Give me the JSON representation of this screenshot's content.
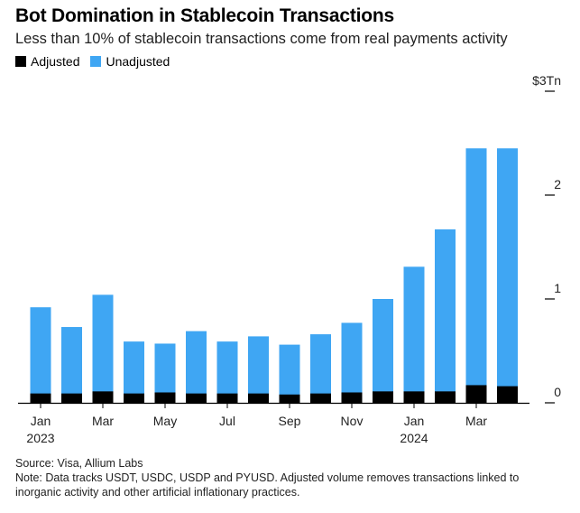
{
  "header": {
    "title": "Bot Domination in Stablecoin Transactions",
    "subtitle": "Less than 10% of stablecoin transactions come from real payments activity"
  },
  "legend": {
    "adjusted_label": "Adjusted",
    "unadjusted_label": "Unadjusted"
  },
  "colors": {
    "adjusted": "#000000",
    "unadjusted": "#3fa6f3",
    "axis": "#000000"
  },
  "chart_data": {
    "type": "bar",
    "stacked": true,
    "categories": [
      "Jan 2023",
      "Feb 2023",
      "Mar 2023",
      "Apr 2023",
      "May 2023",
      "Jun 2023",
      "Jul 2023",
      "Aug 2023",
      "Sep 2023",
      "Oct 2023",
      "Nov 2023",
      "Dec 2023",
      "Jan 2024",
      "Feb 2024",
      "Mar 2024",
      "Apr 2024"
    ],
    "series": [
      {
        "name": "Adjusted",
        "values": [
          0.09,
          0.09,
          0.11,
          0.09,
          0.1,
          0.09,
          0.09,
          0.09,
          0.08,
          0.09,
          0.1,
          0.11,
          0.11,
          0.11,
          0.17,
          0.16
        ]
      },
      {
        "name": "Unadjusted",
        "values": [
          0.92,
          0.73,
          1.04,
          0.59,
          0.57,
          0.69,
          0.59,
          0.64,
          0.56,
          0.66,
          0.77,
          1.0,
          1.31,
          1.67,
          2.45,
          2.45
        ]
      }
    ],
    "x_tick_labels": [
      {
        "index": 0,
        "month": "Jan",
        "year": "2023"
      },
      {
        "index": 2,
        "month": "Mar",
        "year": ""
      },
      {
        "index": 4,
        "month": "May",
        "year": ""
      },
      {
        "index": 6,
        "month": "Jul",
        "year": ""
      },
      {
        "index": 8,
        "month": "Sep",
        "year": ""
      },
      {
        "index": 10,
        "month": "Nov",
        "year": ""
      },
      {
        "index": 12,
        "month": "Jan",
        "year": "2024"
      },
      {
        "index": 14,
        "month": "Mar",
        "year": ""
      }
    ],
    "y_ticks": [
      {
        "value": 0,
        "label": "0"
      },
      {
        "value": 1,
        "label": "1"
      },
      {
        "value": 2,
        "label": "2"
      },
      {
        "value": 3,
        "label": "$3Tn"
      }
    ],
    "ylim": [
      0,
      3
    ],
    "y_axis_position": "right",
    "grid": false,
    "legend_position": "top-left",
    "xlabel": "",
    "ylabel": ""
  },
  "footer": {
    "source": "Source: Visa, Allium Labs",
    "note": "Note: Data tracks USDT, USDC, USDP and PYUSD. Adjusted volume removes transactions linked to inorganic activity and other artificial inflationary practices."
  }
}
